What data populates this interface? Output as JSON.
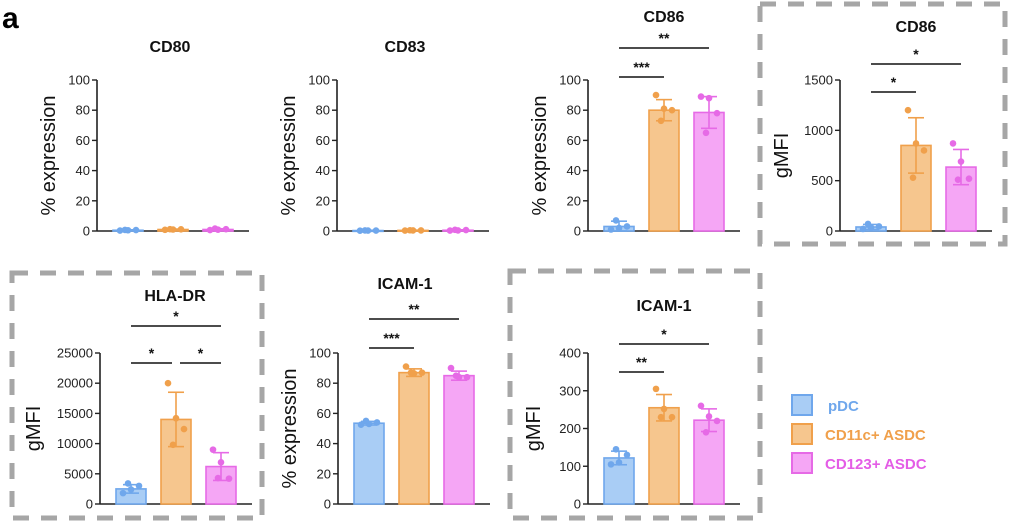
{
  "panel_letter": "a",
  "colors": {
    "pDC": {
      "fill": "#a9cdf5",
      "stroke": "#6fa7ec",
      "text": "#6fa7ec"
    },
    "CD11c+ ASDC": {
      "fill": "#f6c68e",
      "stroke": "#f0a04b",
      "text": "#f0a04b"
    },
    "CD123+ ASDC": {
      "fill": "#f5a6f5",
      "stroke": "#e66ae6",
      "text": "#e45ce6"
    },
    "highlight_box": "#a6a6a6"
  },
  "legend": {
    "position": "right",
    "items": [
      "pDC",
      "CD11c+ ASDC",
      "CD123+ ASDC"
    ]
  },
  "chart_data": [
    {
      "type": "bar",
      "title": "CD80",
      "ylabel": "% expression",
      "ylim": [
        0,
        100
      ],
      "yticks": [
        "0",
        "20",
        "40",
        "60",
        "80",
        "100"
      ],
      "highlighted": false,
      "series": [
        {
          "name": "pDC",
          "mean": 0.5,
          "sd": 0.3,
          "points": [
            0.3,
            0.5,
            0.6,
            0.7
          ]
        },
        {
          "name": "CD11c+ ASDC",
          "mean": 1,
          "sd": 0.3,
          "points": [
            0.8,
            1,
            1.1,
            1.2
          ]
        },
        {
          "name": "CD123+ ASDC",
          "mean": 1,
          "sd": 0.5,
          "points": [
            0.6,
            0.9,
            1.2,
            1.6
          ]
        }
      ],
      "comparisons": []
    },
    {
      "type": "bar",
      "title": "CD83",
      "ylabel": "% expression",
      "ylim": [
        0,
        100
      ],
      "yticks": [
        "0",
        "20",
        "40",
        "60",
        "80",
        "100"
      ],
      "highlighted": false,
      "series": [
        {
          "name": "pDC",
          "mean": 0.3,
          "sd": 0.2,
          "points": [
            0.2,
            0.3,
            0.3,
            0.4
          ]
        },
        {
          "name": "CD11c+ ASDC",
          "mean": 0.4,
          "sd": 0.2,
          "points": [
            0.3,
            0.4,
            0.4,
            0.5
          ]
        },
        {
          "name": "CD123+ ASDC",
          "mean": 0.5,
          "sd": 0.3,
          "points": [
            0.3,
            0.4,
            0.6,
            0.8
          ]
        }
      ],
      "comparisons": []
    },
    {
      "type": "bar",
      "title": "CD86",
      "ylabel": "% expression",
      "ylim": [
        0,
        100
      ],
      "yticks": [
        "0",
        "20",
        "40",
        "60",
        "80",
        "100"
      ],
      "highlighted": false,
      "series": [
        {
          "name": "pDC",
          "mean": 3,
          "sd": 3.5,
          "points": [
            1,
            2,
            3,
            7
          ]
        },
        {
          "name": "CD11c+ ASDC",
          "mean": 80,
          "sd": 7,
          "points": [
            90,
            81,
            80,
            73
          ]
        },
        {
          "name": "CD123+ ASDC",
          "mean": 78.5,
          "sd": 10.5,
          "points": [
            89,
            88,
            78,
            65
          ]
        }
      ],
      "comparisons": [
        {
          "groups": [
            0,
            1
          ],
          "label": "***"
        },
        {
          "groups": [
            0,
            2
          ],
          "label": "**"
        }
      ]
    },
    {
      "type": "bar",
      "title": "CD86",
      "ylabel": "gMFI",
      "ylim": [
        0,
        1500
      ],
      "yticks": [
        "0",
        "500",
        "1000",
        "1500"
      ],
      "highlighted": true,
      "series": [
        {
          "name": "pDC",
          "mean": 40,
          "sd": 25,
          "points": [
            20,
            35,
            45,
            70
          ]
        },
        {
          "name": "CD11c+ ASDC",
          "mean": 850,
          "sd": 275,
          "points": [
            1200,
            870,
            800,
            530
          ]
        },
        {
          "name": "CD123+ ASDC",
          "mean": 635,
          "sd": 175,
          "points": [
            870,
            690,
            520,
            510
          ]
        }
      ],
      "comparisons": [
        {
          "groups": [
            0,
            1
          ],
          "label": "*"
        },
        {
          "groups": [
            0,
            2
          ],
          "label": "*"
        }
      ]
    },
    {
      "type": "bar",
      "title": "HLA-DR",
      "ylabel": "gMFI",
      "ylim": [
        0,
        25000
      ],
      "yticks": [
        "0",
        "5000",
        "10000",
        "15000",
        "20000",
        "25000"
      ],
      "highlighted": true,
      "series": [
        {
          "name": "pDC",
          "mean": 2500,
          "sd": 700,
          "points": [
            1800,
            2400,
            3000,
            3400
          ]
        },
        {
          "name": "CD11c+ ASDC",
          "mean": 14000,
          "sd": 4500,
          "points": [
            20000,
            14200,
            12400,
            9800
          ]
        },
        {
          "name": "CD123+ ASDC",
          "mean": 6200,
          "sd": 2300,
          "points": [
            9000,
            6900,
            4200,
            4300
          ]
        }
      ],
      "comparisons": [
        {
          "groups": [
            0,
            1
          ],
          "label": "*"
        },
        {
          "groups": [
            1,
            2
          ],
          "label": "*"
        },
        {
          "groups": [
            0,
            2
          ],
          "label": "*"
        }
      ]
    },
    {
      "type": "bar",
      "title": "ICAM-1",
      "ylabel": "% expression",
      "ylim": [
        0,
        100
      ],
      "yticks": [
        "0",
        "20",
        "40",
        "60",
        "80",
        "100"
      ],
      "highlighted": false,
      "series": [
        {
          "name": "pDC",
          "mean": 53.5,
          "sd": 1.2,
          "points": [
            52.5,
            53,
            54,
            55
          ]
        },
        {
          "name": "CD11c+ ASDC",
          "mean": 87,
          "sd": 2.5,
          "points": [
            91,
            86.5,
            87,
            87
          ]
        },
        {
          "name": "CD123+ ASDC",
          "mean": 85,
          "sd": 3,
          "points": [
            90,
            84,
            84,
            85
          ]
        }
      ],
      "comparisons": [
        {
          "groups": [
            0,
            1
          ],
          "label": "***"
        },
        {
          "groups": [
            0,
            2
          ],
          "label": "**"
        }
      ]
    },
    {
      "type": "bar",
      "title": "ICAM-1",
      "ylabel": "gMFI",
      "ylim": [
        0,
        400
      ],
      "yticks": [
        "0",
        "100",
        "200",
        "300",
        "400"
      ],
      "highlighted": true,
      "series": [
        {
          "name": "pDC",
          "mean": 122,
          "sd": 18,
          "points": [
            105,
            110,
            130,
            145
          ]
        },
        {
          "name": "CD11c+ ASDC",
          "mean": 255,
          "sd": 35,
          "points": [
            305,
            252,
            230,
            230
          ]
        },
        {
          "name": "CD123+ ASDC",
          "mean": 222,
          "sd": 30,
          "points": [
            260,
            232,
            220,
            190
          ]
        }
      ],
      "comparisons": [
        {
          "groups": [
            0,
            1
          ],
          "label": "**"
        },
        {
          "groups": [
            0,
            2
          ],
          "label": "*"
        }
      ]
    }
  ]
}
